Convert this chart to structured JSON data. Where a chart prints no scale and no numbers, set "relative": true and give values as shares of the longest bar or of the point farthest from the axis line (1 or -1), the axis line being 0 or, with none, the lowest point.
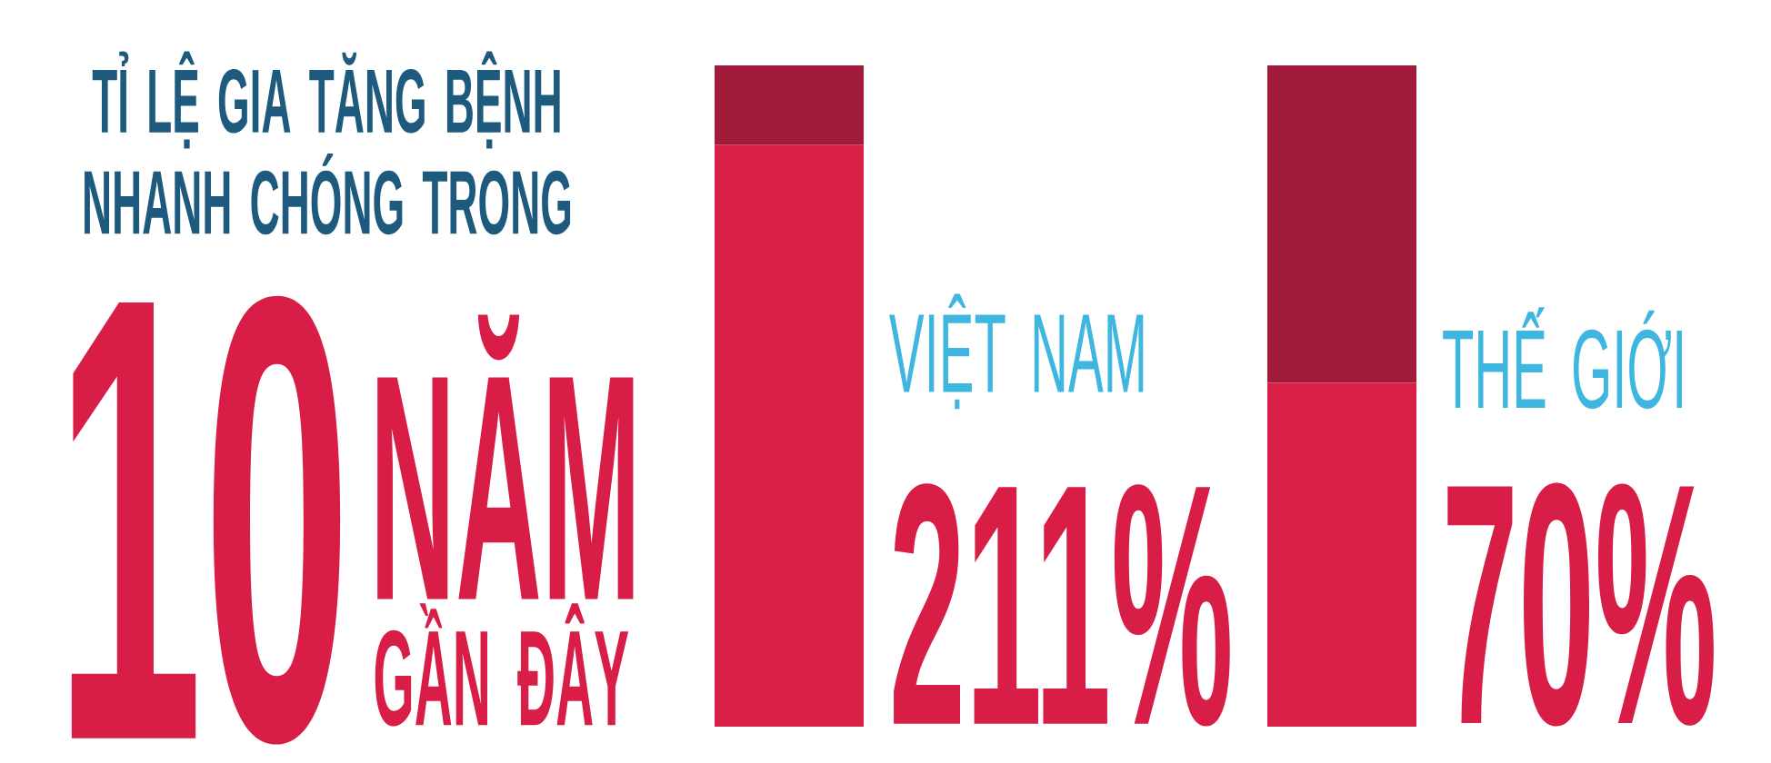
{
  "chart_data": {
    "type": "bar",
    "title": "TỈ LỆ GIA TĂNG BỆNH NHANH CHÓNG TRONG",
    "categories": [
      "VIỆT NAM",
      "THẾ GIỚI"
    ],
    "series": [
      {
        "color": "#d81f46",
        "values": [
          0.88,
          0.52
        ]
      },
      {
        "color": "#a01a3a",
        "values": [
          0.12,
          0.48
        ]
      }
    ],
    "stacked": true,
    "relative": true,
    "annotations": [
      "10",
      "NĂM",
      "GẦN ĐÂY",
      "211%",
      "70%"
    ]
  }
}
